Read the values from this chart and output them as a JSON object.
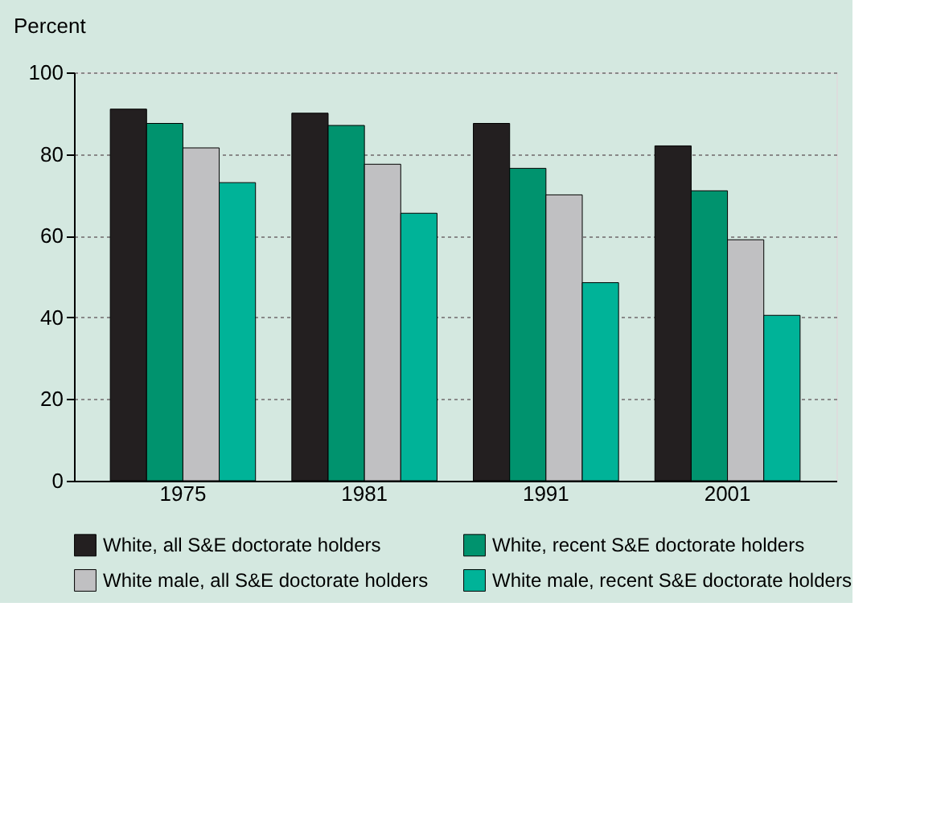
{
  "chart_data": {
    "type": "bar",
    "ylabel": "Percent",
    "categories": [
      "1975",
      "1981",
      "1991",
      "2001"
    ],
    "series": [
      {
        "name": "White, all S&E doctorate holders",
        "color": "#231f20",
        "values": [
          91,
          90,
          87.5,
          82
        ]
      },
      {
        "name": "White, recent S&E doctorate holders",
        "color": "#00936e",
        "values": [
          87.5,
          87,
          76.5,
          71
        ]
      },
      {
        "name": "White male, all S&E doctorate holders",
        "color": "#c0c0c2",
        "values": [
          81.5,
          77.5,
          70,
          59
        ]
      },
      {
        "name": "White male, recent S&E doctorate holders",
        "color": "#00b398",
        "values": [
          73,
          65.5,
          48.5,
          40.5
        ]
      }
    ],
    "ylim": [
      0,
      100
    ],
    "yticks": [
      0,
      20,
      40,
      60,
      80,
      100
    ],
    "grid": "y",
    "legend": "bottom"
  }
}
